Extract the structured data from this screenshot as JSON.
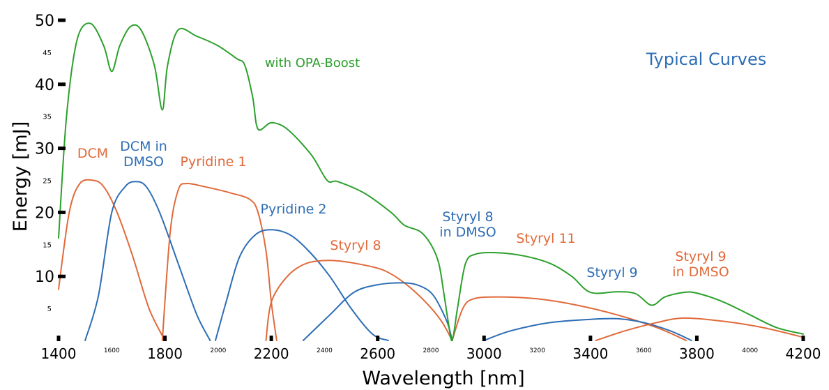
{
  "chart_data": {
    "type": "line",
    "title": "",
    "xlabel": "Wavelength [nm]",
    "ylabel": "Energy [mJ]",
    "xlim": [
      1400,
      4200
    ],
    "ylim": [
      0,
      50
    ],
    "grid": false,
    "x_major_ticks": [
      "1400",
      "1800",
      "2200",
      "2600",
      "3000",
      "3400",
      "3800",
      "4200"
    ],
    "x_minor_ticks": [
      "1600",
      "2000",
      "2400",
      "2800",
      "3200",
      "3600",
      "4000"
    ],
    "y_major_ticks": [
      "10",
      "20",
      "30",
      "40",
      "50"
    ],
    "y_minor_ticks": [
      "5",
      "15",
      "25",
      "35",
      "45"
    ],
    "annotation": "Typical Curves",
    "colors": {
      "orange": "#e06a3b",
      "blue": "#2d6db5",
      "green": "#2ca02c",
      "annotation": "#2d6db5"
    },
    "series": [
      {
        "name": "DCM",
        "label_lines": [
          "DCM"
        ],
        "color": "orange",
        "points": [
          [
            1400,
            8
          ],
          [
            1440,
            20
          ],
          [
            1480,
            24.5
          ],
          [
            1530,
            25
          ],
          [
            1570,
            24
          ],
          [
            1620,
            20
          ],
          [
            1680,
            13
          ],
          [
            1740,
            5
          ],
          [
            1800,
            0
          ]
        ]
      },
      {
        "name": "DCM in DMSO",
        "label_lines": [
          "DCM in",
          "DMSO"
        ],
        "color": "blue",
        "points": [
          [
            1500,
            0
          ],
          [
            1550,
            7
          ],
          [
            1600,
            20
          ],
          [
            1650,
            24
          ],
          [
            1690,
            24.8
          ],
          [
            1730,
            24
          ],
          [
            1780,
            20
          ],
          [
            1850,
            12
          ],
          [
            1920,
            4
          ],
          [
            1970,
            0
          ]
        ]
      },
      {
        "name": "Pyridine 1",
        "label_lines": [
          "Pyridine 1"
        ],
        "color": "orange",
        "points": [
          [
            1790,
            0
          ],
          [
            1820,
            17
          ],
          [
            1850,
            23.5
          ],
          [
            1880,
            24.5
          ],
          [
            1950,
            24
          ],
          [
            2050,
            23
          ],
          [
            2120,
            22
          ],
          [
            2150,
            20
          ],
          [
            2180,
            14
          ],
          [
            2200,
            6
          ],
          [
            2220,
            0
          ]
        ]
      },
      {
        "name": "Pyridine 2",
        "label_lines": [
          "Pyridine 2"
        ],
        "color": "blue",
        "points": [
          [
            1990,
            0
          ],
          [
            2030,
            6
          ],
          [
            2080,
            13
          ],
          [
            2140,
            16.5
          ],
          [
            2200,
            17.3
          ],
          [
            2270,
            16.5
          ],
          [
            2340,
            14
          ],
          [
            2420,
            10
          ],
          [
            2500,
            5
          ],
          [
            2580,
            1
          ],
          [
            2640,
            0
          ]
        ]
      },
      {
        "name": "Styryl 8",
        "label_lines": [
          "Styryl 8"
        ],
        "color": "orange",
        "points": [
          [
            2180,
            0
          ],
          [
            2200,
            6
          ],
          [
            2260,
            10
          ],
          [
            2330,
            12
          ],
          [
            2420,
            12.5
          ],
          [
            2520,
            12
          ],
          [
            2620,
            11
          ],
          [
            2700,
            9
          ],
          [
            2780,
            6
          ],
          [
            2840,
            3
          ],
          [
            2880,
            0
          ]
        ]
      },
      {
        "name": "Styryl 8 in DMSO",
        "label_lines": [
          "Styryl 8",
          "in DMSO"
        ],
        "color": "blue",
        "points": [
          [
            2320,
            0
          ],
          [
            2420,
            4
          ],
          [
            2510,
            7.5
          ],
          [
            2600,
            8.7
          ],
          [
            2700,
            9
          ],
          [
            2760,
            8.5
          ],
          [
            2810,
            7
          ],
          [
            2860,
            3
          ],
          [
            2880,
            0
          ]
        ]
      },
      {
        "name": "Styryl 11",
        "label_lines": [
          "Styryl 11"
        ],
        "color": "orange",
        "points": [
          [
            2880,
            0
          ],
          [
            2920,
            5
          ],
          [
            2960,
            6.5
          ],
          [
            3050,
            6.8
          ],
          [
            3200,
            6.5
          ],
          [
            3350,
            5.5
          ],
          [
            3500,
            4
          ],
          [
            3650,
            2
          ],
          [
            3760,
            0
          ]
        ]
      },
      {
        "name": "Styryl 9",
        "label_lines": [
          "Styryl 9"
        ],
        "color": "blue",
        "points": [
          [
            3000,
            0
          ],
          [
            3100,
            1.5
          ],
          [
            3250,
            2.8
          ],
          [
            3400,
            3.3
          ],
          [
            3500,
            3.4
          ],
          [
            3600,
            2.8
          ],
          [
            3700,
            1.5
          ],
          [
            3780,
            0
          ]
        ]
      },
      {
        "name": "Styryl 9 in DMSO",
        "label_lines": [
          "Styryl 9",
          "in DMSO"
        ],
        "color": "orange",
        "points": [
          [
            3420,
            0
          ],
          [
            3530,
            1.5
          ],
          [
            3650,
            2.8
          ],
          [
            3750,
            3.5
          ],
          [
            3900,
            3
          ],
          [
            4050,
            2
          ],
          [
            4200,
            0.5
          ]
        ]
      },
      {
        "name": "with OPA-Boost",
        "label_lines": [
          "with OPA-Boost"
        ],
        "color": "green",
        "points": [
          [
            1400,
            16
          ],
          [
            1430,
            35
          ],
          [
            1470,
            47
          ],
          [
            1520,
            49.5
          ],
          [
            1570,
            46
          ],
          [
            1600,
            42
          ],
          [
            1630,
            46
          ],
          [
            1670,
            49
          ],
          [
            1710,
            48.5
          ],
          [
            1760,
            43
          ],
          [
            1790,
            36
          ],
          [
            1810,
            43
          ],
          [
            1850,
            48.5
          ],
          [
            1920,
            47.5
          ],
          [
            2000,
            46
          ],
          [
            2070,
            44
          ],
          [
            2100,
            43
          ],
          [
            2130,
            38
          ],
          [
            2150,
            33
          ],
          [
            2200,
            34
          ],
          [
            2260,
            33
          ],
          [
            2350,
            29
          ],
          [
            2410,
            25
          ],
          [
            2450,
            24.8
          ],
          [
            2550,
            23
          ],
          [
            2650,
            20
          ],
          [
            2700,
            18
          ],
          [
            2760,
            17
          ],
          [
            2800,
            15
          ],
          [
            2830,
            12
          ],
          [
            2850,
            7
          ],
          [
            2865,
            3
          ],
          [
            2880,
            0
          ],
          [
            2900,
            5
          ],
          [
            2930,
            12
          ],
          [
            2970,
            13.5
          ],
          [
            3050,
            13.7
          ],
          [
            3150,
            13.2
          ],
          [
            3250,
            12
          ],
          [
            3330,
            10
          ],
          [
            3400,
            7.5
          ],
          [
            3500,
            7.6
          ],
          [
            3570,
            7.3
          ],
          [
            3630,
            5.5
          ],
          [
            3680,
            6.8
          ],
          [
            3750,
            7.5
          ],
          [
            3800,
            7.4
          ],
          [
            3900,
            6
          ],
          [
            4000,
            4
          ],
          [
            4100,
            2
          ],
          [
            4200,
            1
          ]
        ]
      }
    ]
  }
}
